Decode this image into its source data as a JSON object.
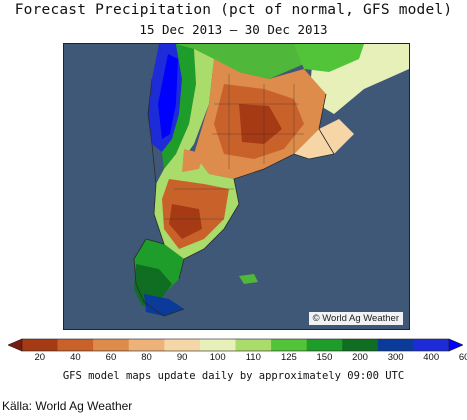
{
  "title": "Forecast Precipitation (pct of normal, GFS model)",
  "subtitle": "15 Dec 2013 – 30 Dec 2013",
  "map": {
    "credit": "© World Ag Weather",
    "ocean_color": "#3f5877"
  },
  "legend": {
    "ticks": [
      "20",
      "40",
      "60",
      "80",
      "90",
      "100",
      "110",
      "125",
      "150",
      "200",
      "300",
      "400",
      "600"
    ],
    "colors": [
      "#7a1a0e",
      "#a63a14",
      "#c8622a",
      "#de8c4b",
      "#edb27a",
      "#f6d6a6",
      "#e6f0b8",
      "#a9dc6a",
      "#52c43a",
      "#1f9d2a",
      "#0f6e22",
      "#0a3a9a",
      "#1e2bd8",
      "#0000ff"
    ]
  },
  "footnote": "GFS model maps update daily by approximately 09:00 UTC",
  "source": "Källa: World Ag Weather"
}
